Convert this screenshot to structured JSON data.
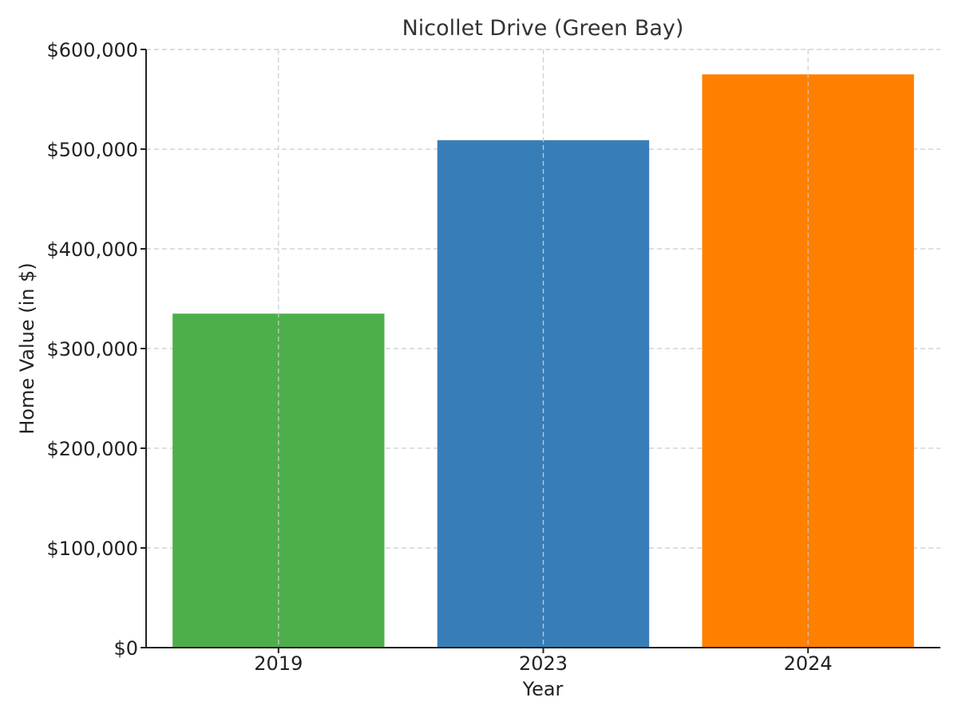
{
  "chart_data": {
    "type": "bar",
    "title": "Nicollet Drive (Green Bay)",
    "xlabel": "Year",
    "ylabel": "Home Value (in $)",
    "categories": [
      "2019",
      "2023",
      "2024"
    ],
    "values": [
      335000,
      509000,
      575000
    ],
    "bar_colors": [
      "#4daf4a",
      "#377eb8",
      "#ff7f00"
    ],
    "ylim": [
      0,
      600000
    ],
    "yticks": [
      0,
      100000,
      200000,
      300000,
      400000,
      500000,
      600000
    ],
    "ytick_labels": [
      "$0",
      "$100,000",
      "$200,000",
      "$300,000",
      "$400,000",
      "$500,000",
      "$600,000"
    ],
    "grid": true,
    "legend": "none"
  }
}
